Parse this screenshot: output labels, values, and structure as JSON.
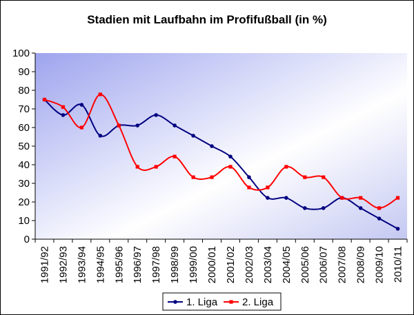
{
  "chart_data": {
    "type": "line",
    "title": "Stadien mit Laufbahn im Profifußball (in %)",
    "xlabel": "",
    "ylabel": "",
    "categories": [
      "1991/92",
      "1992/93",
      "1993/94",
      "1994/95",
      "1995/96",
      "1996/97",
      "1997/98",
      "1998/99",
      "1999/00",
      "2000/01",
      "2001/02",
      "2002/03",
      "2003/04",
      "2004/05",
      "2005/06",
      "2006/07",
      "2007/08",
      "2008/09",
      "2009/10",
      "2010/11"
    ],
    "ylim": [
      0,
      100
    ],
    "yticks": [
      0,
      10,
      20,
      30,
      40,
      50,
      60,
      70,
      80,
      90,
      100
    ],
    "grid": false,
    "legend_position": "bottom",
    "series": [
      {
        "name": "1. Liga",
        "color": "#000080",
        "values": [
          75,
          66.7,
          72.2,
          55.6,
          61.1,
          61.1,
          66.7,
          61.1,
          55.6,
          50,
          44.4,
          33.3,
          22.2,
          22.2,
          16.7,
          16.7,
          22.2,
          16.7,
          11.1,
          5.6
        ]
      },
      {
        "name": "2. Liga",
        "color": "#ff0000",
        "values": [
          75,
          71,
          60,
          77.8,
          61.1,
          38.9,
          38.9,
          44.4,
          33.3,
          33.3,
          38.9,
          27.8,
          27.8,
          38.9,
          33.3,
          33.3,
          22.2,
          22.2,
          16.7,
          22.2
        ]
      }
    ]
  }
}
